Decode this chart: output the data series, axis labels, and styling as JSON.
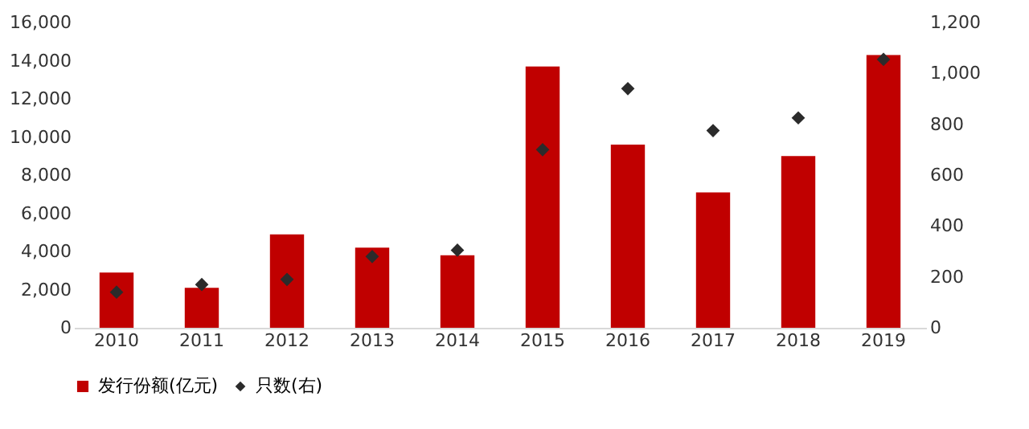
{
  "chart_data": {
    "type": "bar",
    "categories": [
      "2010",
      "2011",
      "2012",
      "2013",
      "2014",
      "2015",
      "2016",
      "2017",
      "2018",
      "2019"
    ],
    "series": [
      {
        "name": "发行份额(亿元)",
        "color": "#c00000",
        "values": [
          2900,
          2100,
          4900,
          4200,
          3800,
          13700,
          9600,
          7100,
          9000,
          14300
        ]
      },
      {
        "name": "只数(右)",
        "type": "scatter",
        "axis": "y2",
        "marker": "diamond",
        "color": "#2b2b2b",
        "values": [
          140,
          170,
          190,
          280,
          305,
          700,
          940,
          775,
          825,
          1055
        ]
      }
    ],
    "ylim": [
      0,
      16000
    ],
    "yticks": [
      0,
      {
        "value": 2000,
        "label": "2,000"
      },
      {
        "value": 4000,
        "label": "4,000"
      },
      {
        "value": 6000,
        "label": "6,000"
      },
      {
        "value": 8000,
        "label": "8,000"
      },
      {
        "value": 10000,
        "label": "10,000"
      },
      {
        "value": 12000,
        "label": "12,000"
      },
      {
        "value": 14000,
        "label": "14,000"
      },
      {
        "value": 16000,
        "label": "16,000"
      }
    ],
    "y2lim": [
      0,
      1200
    ],
    "y2ticks": [
      0,
      200,
      400,
      600,
      800,
      {
        "value": 1000,
        "label": "1,000"
      },
      {
        "value": 1200,
        "label": "1,200"
      }
    ],
    "grid": false,
    "legend": "bottom"
  }
}
